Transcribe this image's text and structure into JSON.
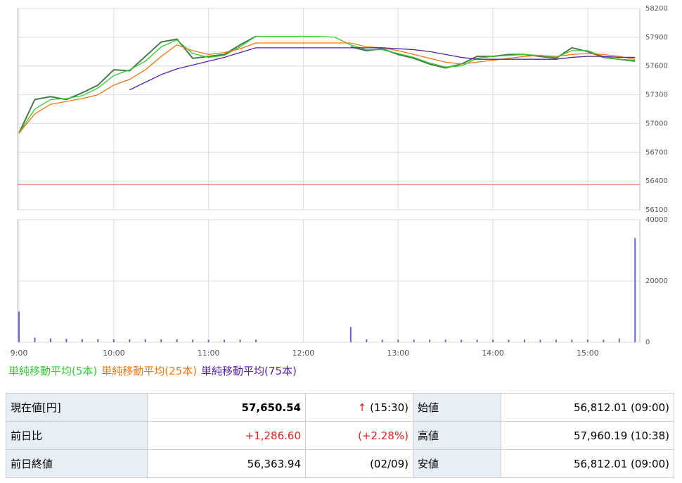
{
  "chart_data": [
    {
      "type": "line",
      "x": [
        "9:00",
        "9:10",
        "9:20",
        "9:30",
        "9:40",
        "9:50",
        "10:00",
        "10:10",
        "10:20",
        "10:30",
        "10:40",
        "10:50",
        "11:00",
        "11:10",
        "11:20",
        "11:30",
        "11:40",
        "11:50",
        "12:00",
        "12:10",
        "12:20",
        "12:30",
        "12:40",
        "12:50",
        "13:00",
        "13:10",
        "13:20",
        "13:30",
        "13:40",
        "13:50",
        "14:00",
        "14:10",
        "14:20",
        "14:30",
        "14:40",
        "14:50",
        "15:00",
        "15:10",
        "15:20",
        "15:30"
      ],
      "price_color": "#4a7a4a",
      "price_values": [
        56900,
        57250,
        57280,
        57250,
        57320,
        57400,
        57560,
        57550,
        57700,
        57850,
        57880,
        57680,
        57700,
        57720,
        57820,
        57910,
        null,
        null,
        null,
        null,
        null,
        57800,
        57760,
        57780,
        57720,
        57680,
        57620,
        57580,
        57620,
        57700,
        57700,
        57720,
        57720,
        57700,
        57680,
        57790,
        57750,
        57690,
        57670,
        57650
      ],
      "series": [
        {
          "name": "単純移動平均(5本)",
          "color": "#33cc33",
          "values": [
            56900,
            57150,
            57250,
            57260,
            57290,
            57370,
            57500,
            57560,
            57650,
            57800,
            57870,
            57730,
            57690,
            57710,
            57800,
            57910,
            57910,
            57910,
            57910,
            57910,
            57900,
            57820,
            57770,
            57770,
            57730,
            57690,
            57630,
            57590,
            57600,
            57680,
            57700,
            57710,
            57720,
            57710,
            57690,
            57760,
            57760,
            57700,
            57670,
            57660
          ]
        },
        {
          "name": "単純移動平均(25本)",
          "color": "#ee7711",
          "values": [
            56900,
            57100,
            57200,
            57230,
            57260,
            57300,
            57400,
            57460,
            57560,
            57700,
            57820,
            57760,
            57720,
            57740,
            57780,
            57840,
            57840,
            57840,
            57840,
            57840,
            57840,
            57840,
            57800,
            57790,
            57760,
            57720,
            57680,
            57640,
            57620,
            57640,
            57660,
            57680,
            57700,
            57710,
            57700,
            57720,
            57730,
            57720,
            57700,
            57670
          ]
        },
        {
          "name": "単純移動平均(75本)",
          "color": "#5522aa",
          "values": [
            null,
            null,
            null,
            null,
            null,
            null,
            null,
            57350,
            57430,
            57510,
            57570,
            57610,
            57650,
            57690,
            57740,
            57790,
            57790,
            57790,
            57790,
            57790,
            57790,
            57790,
            57790,
            57790,
            57780,
            57770,
            57750,
            57720,
            57690,
            57670,
            57670,
            57670,
            57670,
            57670,
            57670,
            57690,
            57700,
            57700,
            57690,
            57690
          ]
        }
      ],
      "reference_line": 56363.94,
      "reference_color": "#ee4444",
      "xlim": [
        "9:00",
        "15:33"
      ],
      "xticks": [
        "9:00",
        "10:00",
        "11:00",
        "12:00",
        "13:00",
        "14:00",
        "15:00"
      ],
      "ylim": [
        56100,
        58200
      ],
      "yticks": [
        56100,
        56400,
        56700,
        57000,
        57300,
        57600,
        57900,
        58200
      ],
      "grid": true
    },
    {
      "type": "bar",
      "x": [
        "9:00",
        "9:10",
        "9:20",
        "9:30",
        "9:40",
        "9:50",
        "10:00",
        "10:10",
        "10:20",
        "10:30",
        "10:40",
        "10:50",
        "11:00",
        "11:10",
        "11:20",
        "11:30",
        "11:40",
        "11:50",
        "12:00",
        "12:10",
        "12:20",
        "12:30",
        "12:40",
        "12:50",
        "13:00",
        "13:10",
        "13:20",
        "13:30",
        "13:40",
        "13:50",
        "14:00",
        "14:10",
        "14:20",
        "14:30",
        "14:40",
        "14:50",
        "15:00",
        "15:10",
        "15:20",
        "15:30"
      ],
      "values": [
        10000,
        1500,
        1200,
        1100,
        1000,
        1000,
        900,
        900,
        900,
        900,
        900,
        800,
        800,
        800,
        800,
        800,
        null,
        null,
        null,
        null,
        null,
        5000,
        900,
        800,
        800,
        800,
        800,
        800,
        800,
        800,
        800,
        800,
        800,
        800,
        800,
        800,
        800,
        800,
        1200,
        34000
      ],
      "color": "#6666cc",
      "xlim": [
        "9:00",
        "15:33"
      ],
      "xticks": [
        "9:00",
        "10:00",
        "11:00",
        "12:00",
        "13:00",
        "14:00",
        "15:00"
      ],
      "ylim": [
        0,
        40000
      ],
      "yticks": [
        0,
        20000,
        40000
      ],
      "grid": true
    }
  ],
  "table": {
    "rows": [
      [
        "現在値[円]",
        "57,650.54",
        "↑",
        "(15:30)",
        "始値",
        "56,812.01 (09:00)"
      ],
      [
        "前日比",
        "+1,286.60",
        "(+2.28%)",
        "高値",
        "57,960.19 (10:38)"
      ],
      [
        "前日終値",
        "56,363.94",
        "(02/09)",
        "安値",
        "56,812.01 (09:00)"
      ]
    ]
  }
}
